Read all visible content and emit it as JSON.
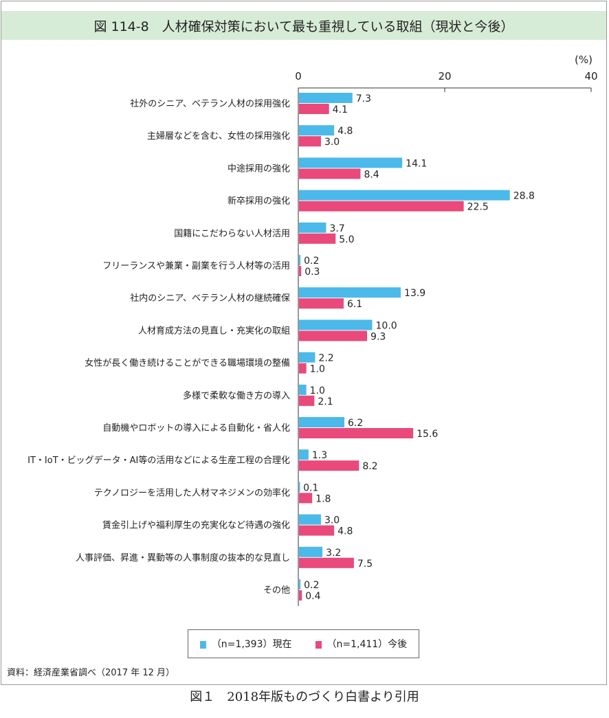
{
  "title": "図 114-8　人材確保対策において最も重視している取組（現状と今後）",
  "source": "資料：経済産業省調べ（2017 年 12 月）",
  "caption": "図１　2018年版ものづくり白書より引用",
  "colors": {
    "current": "#4bb9e9",
    "future": "#e9497b",
    "title_bg": "#d7ecd6"
  },
  "chart_data": {
    "type": "bar",
    "orientation": "horizontal",
    "unit_label": "(%)",
    "xlim": [
      0,
      40
    ],
    "xticks": [
      "0",
      "20",
      "40"
    ],
    "categories": [
      "社外のシニア、ベテラン人材の採用強化",
      "主婦層などを含む、女性の採用強化",
      "中途採用の強化",
      "新卒採用の強化",
      "国籍にこだわらない人材活用",
      "フリーランスや兼業・副業を行う人材等の活用",
      "社内のシニア、ベテラン人材の継続確保",
      "人材育成方法の見直し・充実化の取組",
      "女性が長く働き続けることができる職場環境の整備",
      "多様で柔軟な働き方の導入",
      "自動機やロボットの導入による自動化・省人化",
      "IT・IoT・ビッグデータ・AI等の活用などによる生産工程の合理化",
      "テクノロジーを活用した人材マネジメンの効率化",
      "賃金引上げや福利厚生の充実化など待遇の強化",
      "人事評価、昇進・異動等の人事制度の抜本的な見直し",
      "その他"
    ],
    "series": [
      {
        "name": "（n=1,393）現在",
        "values": [
          7.3,
          4.8,
          14.1,
          28.8,
          3.7,
          0.2,
          13.9,
          10.0,
          2.2,
          1.0,
          6.2,
          1.3,
          0.1,
          3.0,
          3.2,
          0.2
        ]
      },
      {
        "name": "（n=1,411）今後",
        "values": [
          4.1,
          3.0,
          8.4,
          22.5,
          5.0,
          0.3,
          6.1,
          9.3,
          1.0,
          2.1,
          15.6,
          8.2,
          1.8,
          4.8,
          7.5,
          0.4
        ]
      }
    ],
    "legend": "bottom-center"
  }
}
